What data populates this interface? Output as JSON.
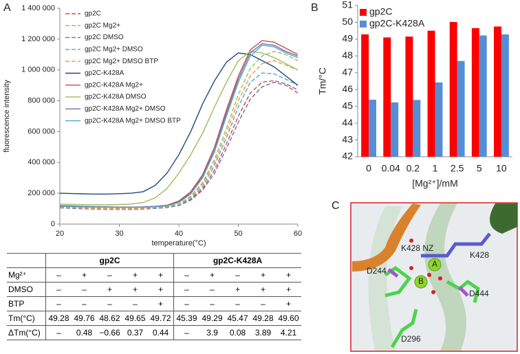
{
  "chart_data": [
    {
      "type": "line",
      "panel": "A",
      "x_label": "temperature(°C)",
      "y_label": "fluorescence intensity",
      "x": [
        20,
        22,
        24,
        26,
        28,
        30,
        32,
        34,
        36,
        38,
        40,
        42,
        44,
        46,
        48,
        50,
        52,
        54,
        56,
        58,
        60
      ],
      "xlim": [
        20,
        60
      ],
      "xticks": [
        20,
        30,
        40,
        50,
        60
      ],
      "ylim": [
        0,
        1400000
      ],
      "yticks": [
        0,
        {
          "value": 200000,
          "label": "200 000"
        },
        {
          "value": 400000,
          "label": "400 000"
        },
        {
          "value": 600000,
          "label": "600 000"
        },
        {
          "value": 800000,
          "label": "800 000"
        },
        {
          "value": 1000000,
          "label": "1 000 000"
        },
        {
          "value": 1200000,
          "label": "1 200 000"
        },
        {
          "value": 1400000,
          "label": "1 400 000"
        }
      ],
      "legend": "top-left",
      "series": [
        {
          "name": "gp2C",
          "color": "#c0504d",
          "style": "dashed",
          "values": [
            110000,
            107000,
            104000,
            102000,
            100000,
            100000,
            100000,
            102000,
            106000,
            112000,
            125000,
            160000,
            230000,
            350000,
            520000,
            700000,
            850000,
            920000,
            930000,
            910000,
            870000
          ]
        },
        {
          "name": "gp2C Mg2+",
          "color": "#9bbb59",
          "style": "dashed",
          "values": [
            112000,
            109000,
            106000,
            104000,
            102000,
            101000,
            101000,
            103000,
            107000,
            114000,
            130000,
            180000,
            270000,
            420000,
            620000,
            840000,
            1010000,
            1090000,
            1120000,
            1100000,
            1060000
          ]
        },
        {
          "name": "gp2C DMSO",
          "color": "#8064a2",
          "style": "dashed",
          "values": [
            105000,
            102000,
            99000,
            97000,
            95000,
            95000,
            95000,
            97000,
            101000,
            107000,
            120000,
            155000,
            220000,
            330000,
            490000,
            660000,
            810000,
            890000,
            920000,
            900000,
            850000
          ]
        },
        {
          "name": "gp2C Mg2+ DMSO",
          "color": "#4bacc6",
          "style": "dashed",
          "values": [
            108000,
            105000,
            102000,
            100000,
            98000,
            98000,
            98000,
            100000,
            104000,
            110000,
            123000,
            165000,
            245000,
            380000,
            560000,
            760000,
            920000,
            980000,
            975000,
            940000,
            900000
          ]
        },
        {
          "name": "gp2C Mg2+ DMSO BTP",
          "color": "#f79646",
          "style": "dashed",
          "values": [
            110000,
            107000,
            104000,
            102000,
            100000,
            100000,
            100000,
            102000,
            106000,
            113000,
            128000,
            175000,
            260000,
            400000,
            590000,
            800000,
            960000,
            1040000,
            1060000,
            1030000,
            1000000
          ]
        },
        {
          "name": "gp2C-K428A",
          "color": "#1f497d",
          "style": "solid",
          "values": [
            200000,
            198000,
            196000,
            195000,
            195000,
            197000,
            200000,
            210000,
            250000,
            330000,
            450000,
            600000,
            780000,
            930000,
            1050000,
            1110000,
            1100000,
            1060000,
            1020000,
            960000,
            900000
          ]
        },
        {
          "name": "gp2C-K428A Mg2+",
          "color": "#c0504d",
          "style": "solid",
          "values": [
            120000,
            118000,
            115000,
            113000,
            112000,
            110000,
            110000,
            112000,
            115000,
            122000,
            150000,
            210000,
            320000,
            500000,
            740000,
            960000,
            1130000,
            1190000,
            1180000,
            1140000,
            1100000
          ]
        },
        {
          "name": "gp2C-K428A  DMSO",
          "color": "#9bbb59",
          "style": "solid",
          "values": [
            130000,
            128000,
            126000,
            125000,
            125000,
            127000,
            130000,
            140000,
            170000,
            230000,
            330000,
            450000,
            590000,
            760000,
            920000,
            1060000,
            1120000,
            1110000,
            1080000,
            1040000,
            1000000
          ]
        },
        {
          "name": "gp2C-K428A Mg2+ DMSO",
          "color": "#8064a2",
          "style": "solid",
          "values": [
            118000,
            116000,
            114000,
            112000,
            111000,
            110000,
            110000,
            111000,
            114000,
            120000,
            145000,
            200000,
            310000,
            480000,
            720000,
            940000,
            1110000,
            1170000,
            1160000,
            1120000,
            1090000
          ]
        },
        {
          "name": "gp2C-K428A Mg2+ DMSO BTP",
          "color": "#4bacc6",
          "style": "solid",
          "values": [
            115000,
            113000,
            111000,
            110000,
            109000,
            108000,
            108000,
            109000,
            112000,
            118000,
            140000,
            195000,
            300000,
            470000,
            700000,
            920000,
            1090000,
            1160000,
            1150000,
            1110000,
            1080000
          ]
        }
      ]
    },
    {
      "type": "bar",
      "panel": "B",
      "x_label": "[Mg²⁺]/mM",
      "y_label": "Tm/°C",
      "categories": [
        "0",
        "0.04",
        "0.2",
        "1",
        "2.5",
        "5",
        "10"
      ],
      "ylim": [
        42,
        51
      ],
      "yticks": [
        42,
        43,
        44,
        45,
        46,
        47,
        48,
        49,
        50,
        51
      ],
      "legend": "top-left",
      "series": [
        {
          "name": "gp2C",
          "color": "#ff0000",
          "values": [
            49.28,
            49.1,
            49.15,
            49.5,
            50.02,
            49.65,
            49.75
          ]
        },
        {
          "name": "gp2C-K428A",
          "color": "#558ed5",
          "values": [
            45.39,
            45.23,
            45.38,
            46.42,
            47.7,
            49.22,
            49.28
          ]
        }
      ]
    }
  ],
  "table": {
    "groups": [
      "gp2C",
      "gp2C-K428A"
    ],
    "rows": [
      {
        "label": "Mg²⁺",
        "cells": [
          "–",
          "+",
          "–",
          "+",
          "+",
          "–",
          "+",
          "–",
          "+",
          "+"
        ]
      },
      {
        "label": "DMSO",
        "cells": [
          "–",
          "–",
          "+",
          "+",
          "+",
          "–",
          "–",
          "+",
          "+",
          "+"
        ]
      },
      {
        "label": "BTP",
        "cells": [
          "–",
          "–",
          "–",
          "–",
          "+",
          "–",
          "–",
          "–",
          "–",
          "+"
        ]
      },
      {
        "label": "Tm(°C)",
        "cells": [
          "49.28",
          "49.76",
          "48.62",
          "49.65",
          "49.72",
          "45.39",
          "49.29",
          "45.47",
          "49.28",
          "49.60"
        ]
      },
      {
        "label": "ΔTm(°C)",
        "cells": [
          "–",
          "0.48",
          "−0.66",
          "0.37",
          "0.44",
          "–",
          "3.9",
          "0.08",
          "3.89",
          "4.21"
        ]
      }
    ]
  },
  "structure": {
    "panel": "C",
    "labels": [
      "K428 NZ",
      "K428",
      "D244",
      "A",
      "B",
      "D444",
      "D296"
    ]
  }
}
